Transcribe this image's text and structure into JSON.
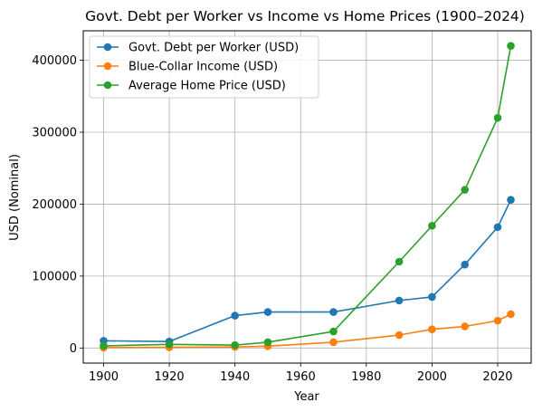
{
  "chart_data": {
    "type": "line",
    "title": "Govt. Debt per Worker vs Income vs Home Prices (1900–2024)",
    "xlabel": "Year",
    "ylabel": "USD (Nominal)",
    "xlim": [
      1893.8,
      2030.2
    ],
    "ylim": [
      -21000,
      441000
    ],
    "xticks": [
      1900,
      1920,
      1940,
      1960,
      1980,
      2000,
      2020
    ],
    "yticks": [
      0,
      100000,
      200000,
      300000,
      400000
    ],
    "grid": true,
    "legend_position": "top-left",
    "x": [
      1900,
      1920,
      1940,
      1950,
      1970,
      1990,
      2000,
      2010,
      2020,
      2024
    ],
    "series": [
      {
        "name": "Govt. Debt per Worker (USD)",
        "color": "#1f77b4",
        "values": [
          10000,
          9000,
          45000,
          50000,
          50000,
          66000,
          71000,
          116000,
          168000,
          206000
        ]
      },
      {
        "name": "Blue-Collar Income (USD)",
        "color": "#ff7f0e",
        "values": [
          500,
          1000,
          1500,
          2500,
          8000,
          18000,
          26000,
          30000,
          38000,
          47000
        ]
      },
      {
        "name": "Average Home Price (USD)",
        "color": "#2ca02c",
        "values": [
          3000,
          5000,
          4000,
          8000,
          23000,
          120000,
          170000,
          220000,
          320000,
          420000
        ]
      }
    ]
  }
}
